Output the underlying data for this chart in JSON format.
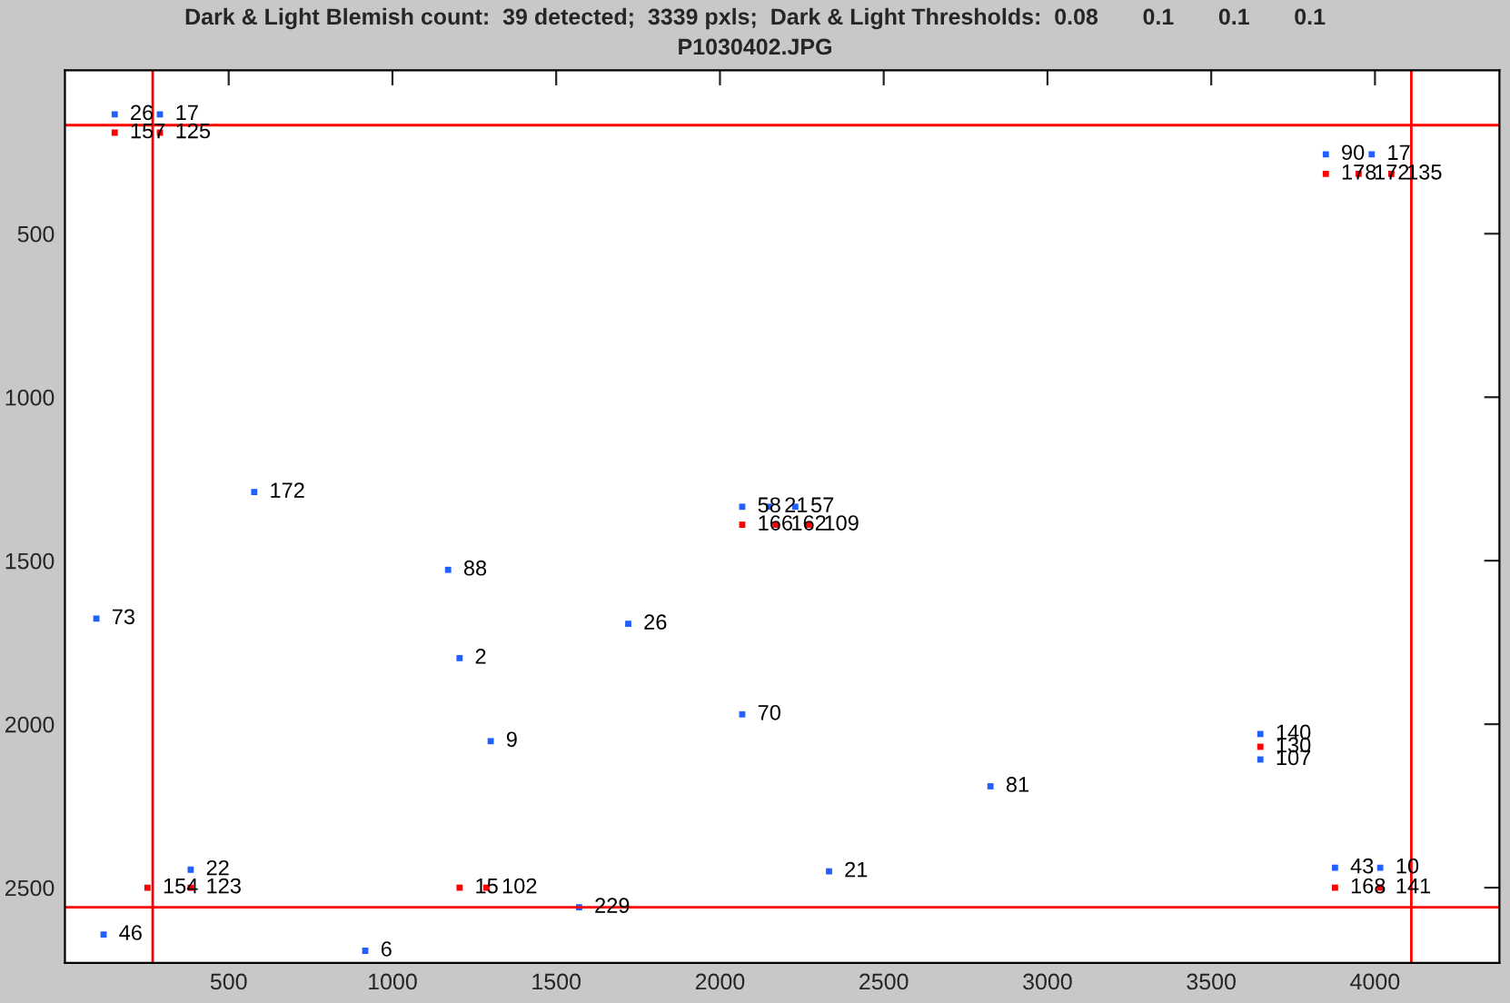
{
  "chart_data": {
    "type": "scatter",
    "title": "Dark & Light Blemish count:  39 detected;  3339 pxls;  Dark & Light Thresholds:  0.08       0.1       0.1       0.1",
    "subtitle": "P1030402.JPG",
    "xlim": [
      0,
      4380
    ],
    "ylim": [
      2730,
      0
    ],
    "xticks": [
      500,
      1000,
      1500,
      2000,
      2500,
      3000,
      3500,
      4000
    ],
    "yticks": [
      500,
      1000,
      1500,
      2000,
      2500
    ],
    "grid": false,
    "legend": false,
    "marker": "square",
    "ref_lines": [
      {
        "axis": "y",
        "value": 168,
        "color": "#ff0000"
      },
      {
        "axis": "x",
        "value": 268,
        "color": "#ff0000"
      },
      {
        "axis": "x",
        "value": 4111,
        "color": "#ff0000"
      },
      {
        "axis": "y",
        "value": 2560,
        "color": "#ff0000"
      }
    ],
    "series": [
      {
        "color": "#2060ff",
        "x": [
          152,
          290,
          3850,
          3990,
          578,
          2068,
          2150,
          2230,
          1170,
          96,
          1720,
          1205,
          1300,
          2068,
          3650,
          3650,
          2826,
          2333,
          384,
          1570,
          118,
          917,
          3878,
          4016
        ],
        "values": [
          135,
          135,
          257,
          257,
          1290,
          1335,
          1335,
          1335,
          1528,
          1677,
          1693,
          1798,
          2052,
          1970,
          2030,
          2108,
          2190,
          2450,
          2445,
          2560,
          2643,
          2693,
          2439,
          2439
        ]
      },
      {
        "color": "#ff0000",
        "x": [
          152,
          290,
          3850,
          3950,
          4050,
          2068,
          2170,
          2270,
          3650,
          252,
          384,
          1205,
          1287,
          3878,
          4016
        ],
        "values": [
          191,
          191,
          317,
          317,
          317,
          1390,
          1390,
          1390,
          2069,
          2500,
          2500,
          2500,
          2500,
          2500,
          2500
        ]
      }
    ],
    "annotations": [
      {
        "text": "26",
        "x": 152,
        "y": 135
      },
      {
        "text": "17",
        "x": 290,
        "y": 135
      },
      {
        "text": "90",
        "x": 3850,
        "y": 257
      },
      {
        "text": "17",
        "x": 3990,
        "y": 257
      },
      {
        "text": "172",
        "x": 578,
        "y": 1290
      },
      {
        "text": "58",
        "x": 2068,
        "y": 1335
      },
      {
        "text": "21",
        "x": 2150,
        "y": 1335
      },
      {
        "text": "57",
        "x": 2230,
        "y": 1335
      },
      {
        "text": "88",
        "x": 1170,
        "y": 1528
      },
      {
        "text": "73",
        "x": 96,
        "y": 1677
      },
      {
        "text": "26",
        "x": 1720,
        "y": 1693
      },
      {
        "text": "2",
        "x": 1205,
        "y": 1798
      },
      {
        "text": "9",
        "x": 1300,
        "y": 2052
      },
      {
        "text": "70",
        "x": 2068,
        "y": 1970
      },
      {
        "text": "140",
        "x": 3650,
        "y": 2030
      },
      {
        "text": "107",
        "x": 3650,
        "y": 2108
      },
      {
        "text": "81",
        "x": 2826,
        "y": 2190
      },
      {
        "text": "21",
        "x": 2333,
        "y": 2450
      },
      {
        "text": "22",
        "x": 384,
        "y": 2445
      },
      {
        "text": "229",
        "x": 1570,
        "y": 2560
      },
      {
        "text": "46",
        "x": 118,
        "y": 2643
      },
      {
        "text": "6",
        "x": 917,
        "y": 2693
      },
      {
        "text": "43",
        "x": 3878,
        "y": 2439
      },
      {
        "text": "10",
        "x": 4016,
        "y": 2439
      },
      {
        "text": "157",
        "x": 152,
        "y": 191
      },
      {
        "text": "125",
        "x": 290,
        "y": 191
      },
      {
        "text": "178",
        "x": 3850,
        "y": 317
      },
      {
        "text": "172",
        "x": 3950,
        "y": 317
      },
      {
        "text": "135",
        "x": 4050,
        "y": 317
      },
      {
        "text": "166",
        "x": 2068,
        "y": 1390
      },
      {
        "text": "162",
        "x": 2170,
        "y": 1390
      },
      {
        "text": "109",
        "x": 2270,
        "y": 1390
      },
      {
        "text": "130",
        "x": 3650,
        "y": 2069
      },
      {
        "text": "154",
        "x": 252,
        "y": 2500
      },
      {
        "text": "123",
        "x": 384,
        "y": 2500
      },
      {
        "text": "15",
        "x": 1205,
        "y": 2500
      },
      {
        "text": "102",
        "x": 1287,
        "y": 2500
      },
      {
        "text": "168",
        "x": 3878,
        "y": 2500
      },
      {
        "text": "141",
        "x": 4016,
        "y": 2500
      }
    ]
  }
}
